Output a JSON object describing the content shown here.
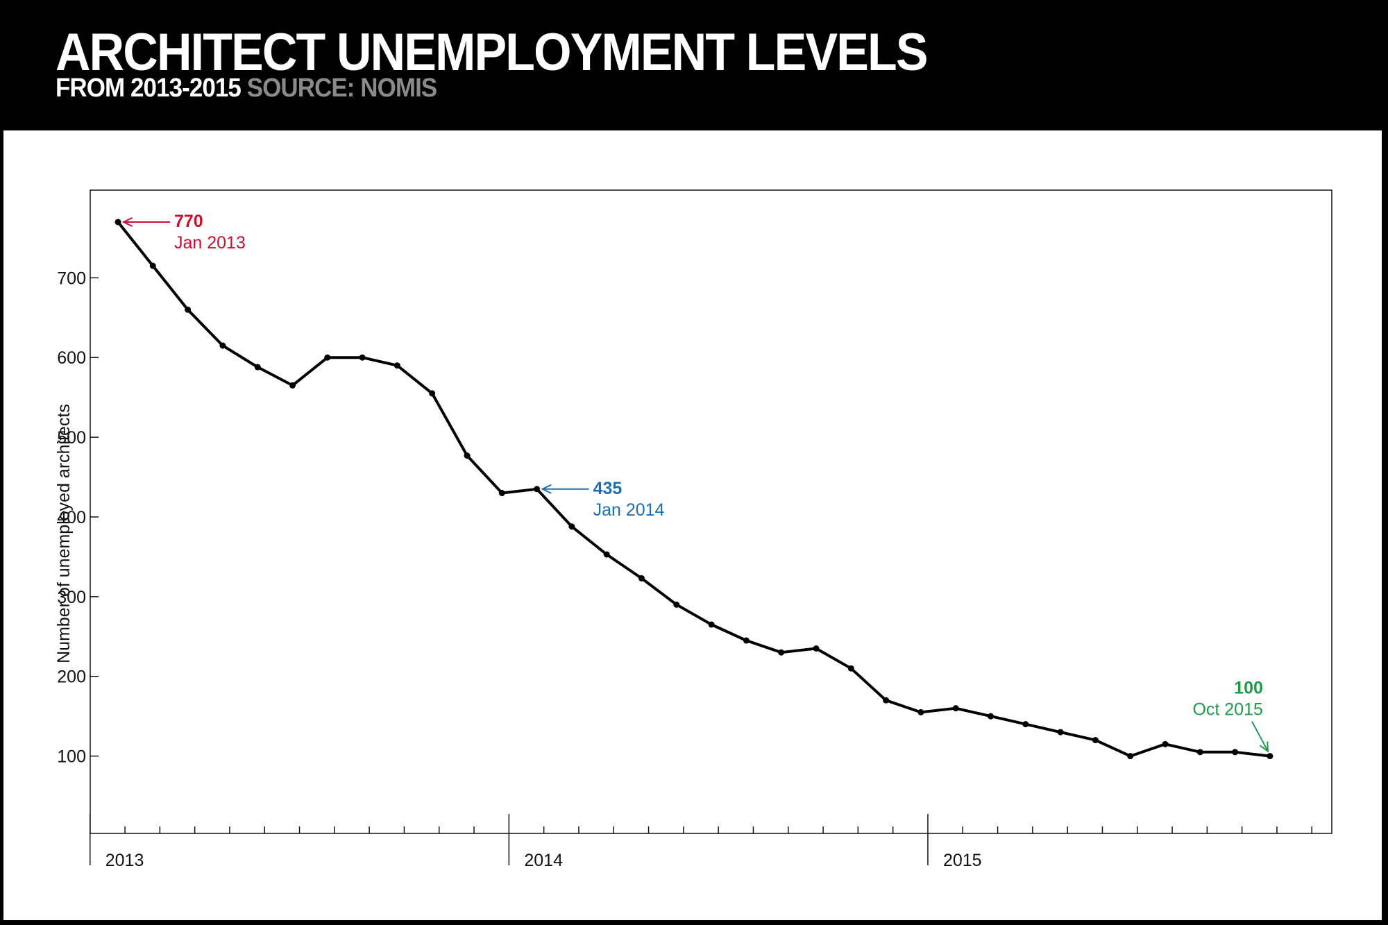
{
  "header": {
    "title": "ARCHITECT UNEMPLOYMENT LEVELS",
    "subtitle_range": "FROM 2013-2015",
    "subtitle_source": "SOURCE: NOMIS"
  },
  "colors": {
    "line": "#000000",
    "annotation_start": "#c8102e",
    "annotation_mid": "#1f6fb0",
    "annotation_end": "#1f9a4b",
    "subtitle_source": "#8a8a8a"
  },
  "chart_data": {
    "type": "line",
    "title": "ARCHITECT UNEMPLOYMENT LEVELS",
    "subtitle": "FROM 2013-2015 SOURCE: NOMIS",
    "xlabel": "",
    "ylabel": "Number of unemployed architects",
    "x_tick_labels": [
      "2013",
      "2014",
      "2015"
    ],
    "y_ticks": [
      100,
      200,
      300,
      400,
      500,
      600,
      700
    ],
    "ylim": [
      3,
      810
    ],
    "grid": false,
    "series": [
      {
        "x": [
          "Jan 2013",
          "Feb 2013",
          "Mar 2013",
          "Apr 2013",
          "May 2013",
          "Jun 2013",
          "Jul 2013",
          "Aug 2013",
          "Sep 2013",
          "Oct 2013",
          "Nov 2013",
          "Dec 2013",
          "Jan 2014",
          "Feb 2014",
          "Mar 2014",
          "Apr 2014",
          "May 2014",
          "Jun 2014",
          "Jul 2014",
          "Aug 2014",
          "Sep 2014",
          "Oct 2014",
          "Nov 2014",
          "Dec 2014",
          "Jan 2015",
          "Feb 2015",
          "Mar 2015",
          "Apr 2015",
          "May 2015",
          "Jun 2015",
          "Jul 2015",
          "Aug 2015",
          "Sep 2015",
          "Oct 2015"
        ],
        "values": [
          770,
          715,
          660,
          615,
          588,
          565,
          600,
          600,
          590,
          555,
          477,
          430,
          435,
          388,
          353,
          323,
          290,
          265,
          245,
          230,
          235,
          210,
          170,
          155,
          160,
          150,
          140,
          130,
          120,
          100,
          115,
          105,
          105,
          100
        ]
      }
    ],
    "annotations": [
      {
        "value": "770",
        "date": "Jan 2013",
        "color": "#c8102e"
      },
      {
        "value": "435",
        "date": "Jan 2014",
        "color": "#1f6fb0"
      },
      {
        "value": "100",
        "date": "Oct 2015",
        "color": "#1f9a4b"
      }
    ]
  }
}
